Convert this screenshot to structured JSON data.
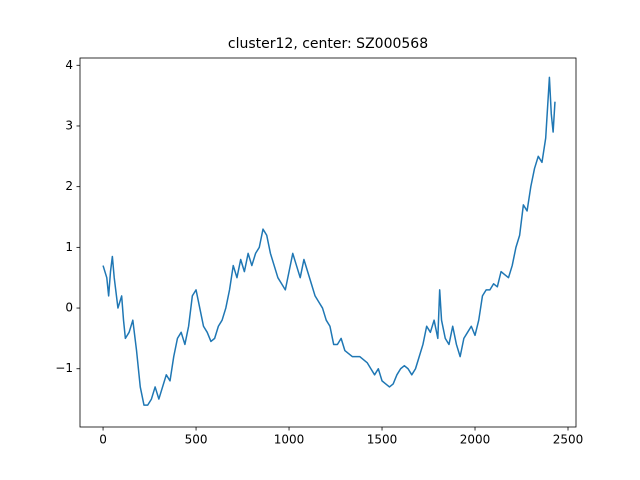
{
  "chart_data": {
    "type": "line",
    "title": "cluster12, center: SZ000568",
    "x": [
      0,
      20,
      30,
      40,
      50,
      60,
      80,
      100,
      110,
      120,
      140,
      160,
      180,
      200,
      220,
      240,
      260,
      280,
      300,
      320,
      340,
      360,
      380,
      400,
      420,
      440,
      460,
      480,
      500,
      520,
      540,
      560,
      580,
      600,
      620,
      640,
      660,
      680,
      700,
      720,
      740,
      760,
      780,
      800,
      820,
      840,
      860,
      880,
      900,
      920,
      940,
      960,
      980,
      1000,
      1020,
      1040,
      1060,
      1080,
      1100,
      1120,
      1140,
      1160,
      1180,
      1200,
      1220,
      1240,
      1260,
      1280,
      1300,
      1340,
      1380,
      1420,
      1440,
      1460,
      1480,
      1500,
      1520,
      1540,
      1560,
      1580,
      1600,
      1620,
      1640,
      1660,
      1680,
      1700,
      1720,
      1740,
      1760,
      1780,
      1800,
      1810,
      1820,
      1840,
      1860,
      1880,
      1900,
      1920,
      1940,
      1960,
      1980,
      2000,
      2020,
      2040,
      2060,
      2080,
      2100,
      2120,
      2140,
      2160,
      2180,
      2200,
      2220,
      2240,
      2260,
      2280,
      2300,
      2320,
      2340,
      2360,
      2380,
      2390,
      2400,
      2410,
      2420,
      2430
    ],
    "series": [
      {
        "name": "SZ000568",
        "color": "#1f77b4",
        "values": [
          0.7,
          0.5,
          0.2,
          0.6,
          0.85,
          0.5,
          0.0,
          0.2,
          -0.2,
          -0.5,
          -0.4,
          -0.2,
          -0.7,
          -1.3,
          -1.6,
          -1.6,
          -1.5,
          -1.3,
          -1.5,
          -1.3,
          -1.1,
          -1.2,
          -0.8,
          -0.5,
          -0.4,
          -0.6,
          -0.3,
          0.2,
          0.3,
          0.0,
          -0.3,
          -0.4,
          -0.55,
          -0.5,
          -0.3,
          -0.2,
          0.0,
          0.3,
          0.7,
          0.5,
          0.8,
          0.6,
          0.9,
          0.7,
          0.9,
          1.0,
          1.3,
          1.2,
          0.9,
          0.7,
          0.5,
          0.4,
          0.3,
          0.6,
          0.9,
          0.7,
          0.5,
          0.8,
          0.6,
          0.4,
          0.2,
          0.1,
          0.0,
          -0.2,
          -0.3,
          -0.6,
          -0.6,
          -0.5,
          -0.7,
          -0.8,
          -0.8,
          -0.9,
          -1.0,
          -1.1,
          -1.0,
          -1.2,
          -1.25,
          -1.3,
          -1.25,
          -1.1,
          -1.0,
          -0.95,
          -1.0,
          -1.1,
          -1.0,
          -0.8,
          -0.6,
          -0.3,
          -0.4,
          -0.2,
          -0.5,
          0.3,
          -0.2,
          -0.5,
          -0.6,
          -0.3,
          -0.6,
          -0.8,
          -0.5,
          -0.4,
          -0.3,
          -0.45,
          -0.2,
          0.2,
          0.3,
          0.3,
          0.4,
          0.35,
          0.6,
          0.55,
          0.5,
          0.7,
          1.0,
          1.2,
          1.7,
          1.6,
          2.0,
          2.3,
          2.5,
          2.4,
          2.8,
          3.3,
          3.8,
          3.2,
          2.9,
          3.4
        ]
      }
    ],
    "xlim": [
      -124,
      2543
    ],
    "xticks": [
      0,
      500,
      1000,
      1500,
      2000,
      2500
    ],
    "ylim": [
      -1.96,
      4.12
    ],
    "yticks": [
      {
        "value": -1,
        "label": "−1"
      },
      0,
      1,
      2,
      3,
      4
    ],
    "grid": false
  }
}
